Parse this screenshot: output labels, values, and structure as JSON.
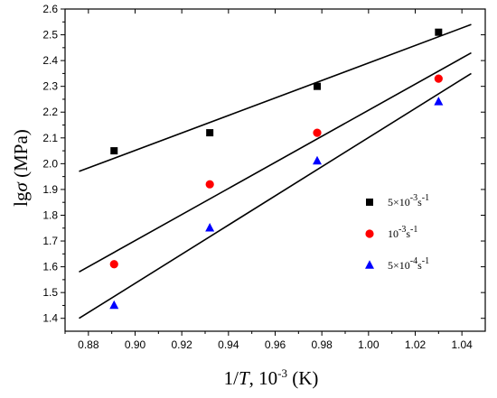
{
  "chart_data": {
    "type": "scatter",
    "xlabel": "1/T, 10-3 (K)",
    "ylabel": "lgσ (MPa)",
    "xlim": [
      0.87,
      1.05
    ],
    "ylim": [
      1.35,
      2.6
    ],
    "x_ticks": [
      "0.88",
      "0.90",
      "0.92",
      "0.94",
      "0.96",
      "0.98",
      "1.00",
      "1.02",
      "1.04"
    ],
    "y_ticks": [
      "1.4",
      "1.5",
      "1.6",
      "1.7",
      "1.8",
      "1.9",
      "2.0",
      "2.1",
      "2.2",
      "2.3",
      "2.4",
      "2.5",
      "2.6"
    ],
    "grid": false,
    "legend_position": "right",
    "series": [
      {
        "name": "5×10-3s-1",
        "marker": "square",
        "color": "#000000",
        "x": [
          0.891,
          0.932,
          0.978,
          1.03
        ],
        "y": [
          2.05,
          2.12,
          2.3,
          2.51
        ],
        "fit_line": {
          "x": [
            0.876,
            1.044
          ],
          "y": [
            1.97,
            2.54
          ]
        }
      },
      {
        "name": "10-3s-1",
        "marker": "circle",
        "color": "#ff0000",
        "x": [
          0.891,
          0.932,
          0.978,
          1.03
        ],
        "y": [
          1.61,
          1.92,
          2.12,
          2.33
        ],
        "fit_line": {
          "x": [
            0.876,
            1.044
          ],
          "y": [
            1.58,
            2.43
          ]
        }
      },
      {
        "name": "5×10-4s-1",
        "marker": "triangle",
        "color": "#0000ff",
        "x": [
          0.891,
          0.932,
          0.978,
          1.03
        ],
        "y": [
          1.45,
          1.75,
          2.01,
          2.24
        ],
        "fit_line": {
          "x": [
            0.876,
            1.044
          ],
          "y": [
            1.4,
            2.35
          ]
        }
      }
    ]
  },
  "legend": [
    {
      "base": "5×10",
      "sup1": "-3",
      "mid": "s",
      "sup2": "-1"
    },
    {
      "base": "10",
      "sup1": "-3",
      "mid": "s",
      "sup2": "-1"
    },
    {
      "base": "5×10",
      "sup1": "-4",
      "mid": "s",
      "sup2": "-1"
    }
  ],
  "axes": {
    "x_title_parts": {
      "a": "1/",
      "b": "T",
      "c": ", 10",
      "d": "-3",
      "e": " (K)"
    },
    "y_title_parts": {
      "a": "lg",
      "b": "σ",
      "c": " (MPa)"
    }
  }
}
